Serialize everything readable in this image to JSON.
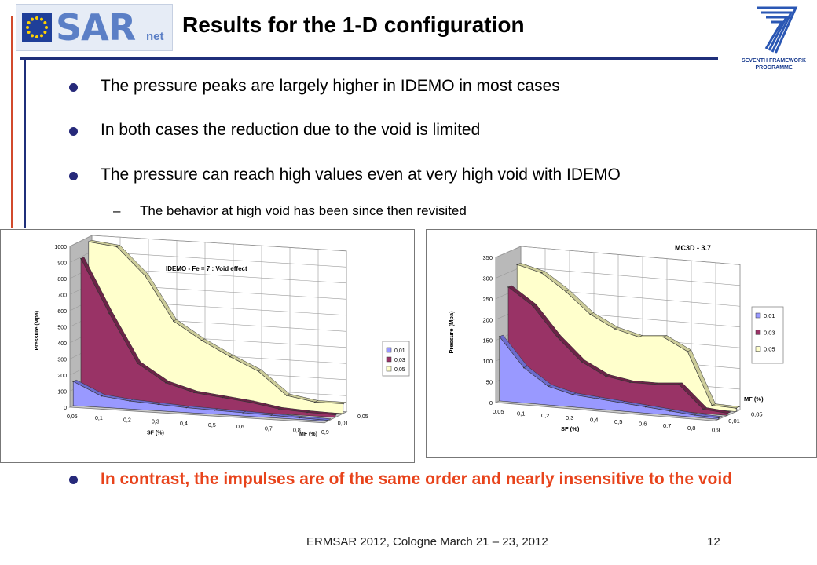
{
  "header": {
    "title": "Results for the 1-D configuration",
    "logo_left_text": "SAR",
    "logo_left_sub": "net",
    "logo_right_caption_1": "SEVENTH FRAMEWORK",
    "logo_right_caption_2": "PROGRAMME"
  },
  "bullets": [
    {
      "text": "The pressure peaks are largely higher in IDEMO in most cases"
    },
    {
      "text": "In both cases the reduction due to the void is limited"
    },
    {
      "text": "The pressure can reach high values even at very high void with IDEMO"
    }
  ],
  "sub_bullet": {
    "dash": "–",
    "text": "The behavior at high void has been since then revisited"
  },
  "highlight": "In contrast, the impulses are of the same order and nearly insensitive to the void",
  "footer": {
    "text": "ERMSAR 2012, Cologne March 21 – 23, 2012",
    "page": "12"
  },
  "colors": {
    "series_001": "#9999ff",
    "series_003": "#993366",
    "series_005": "#ffffcc",
    "accent_red": "#e8431b",
    "rule_blue": "#1f2f7a"
  },
  "chart_data": [
    {
      "type": "area",
      "title": "IDEMO - Fe = 7 : Void effect",
      "ylabel": "Pressure (Mpa)",
      "xlabel": "SF (%)",
      "zlabel": "MF (%)",
      "ylim": [
        0,
        1000
      ],
      "yticks": [
        "0",
        "100",
        "200",
        "300",
        "400",
        "500",
        "600",
        "700",
        "800",
        "900",
        "1000"
      ],
      "categories": [
        "0,05",
        "0,1",
        "0,2",
        "0,3",
        "0,4",
        "0,5",
        "0,6",
        "0,7",
        "0,8",
        "0,9"
      ],
      "series": [
        {
          "name": "0,01",
          "values": [
            150,
            70,
            50,
            40,
            30,
            25,
            20,
            15,
            10,
            5
          ]
        },
        {
          "name": "0,03",
          "values": [
            890,
            560,
            260,
            150,
            100,
            80,
            60,
            30,
            20,
            15
          ]
        },
        {
          "name": "0,05",
          "values": [
            970,
            950,
            780,
            510,
            400,
            310,
            230,
            90,
            60,
            60
          ]
        }
      ],
      "legend": [
        "0,01",
        "0,03",
        "0,05"
      ],
      "zticks": [
        "0,01",
        "0,05"
      ]
    },
    {
      "type": "area",
      "title": "MC3D - 3.7",
      "ylabel": "Pressure (Mpa)",
      "xlabel": "SF (%)",
      "zlabel": "MF (%)",
      "ylim": [
        0,
        350
      ],
      "yticks": [
        "0",
        "50",
        "100",
        "150",
        "200",
        "250",
        "300",
        "350"
      ],
      "categories": [
        "0,05",
        "0,1",
        "0,2",
        "0,3",
        "0,4",
        "0,5",
        "0,6",
        "0,7",
        "0,8",
        "0,9"
      ],
      "series": [
        {
          "name": "0,01",
          "values": [
            155,
            85,
            45,
            30,
            25,
            20,
            15,
            10,
            5,
            3
          ]
        },
        {
          "name": "0,03",
          "values": [
            265,
            225,
            155,
            100,
            70,
            60,
            60,
            65,
            10,
            5
          ]
        },
        {
          "name": "0,05",
          "values": [
            310,
            295,
            255,
            205,
            175,
            160,
            165,
            135,
            10,
            8
          ]
        }
      ],
      "legend": [
        "0,01",
        "0,03",
        "0,05"
      ],
      "zticks": [
        "0,01",
        "0,05"
      ]
    }
  ]
}
